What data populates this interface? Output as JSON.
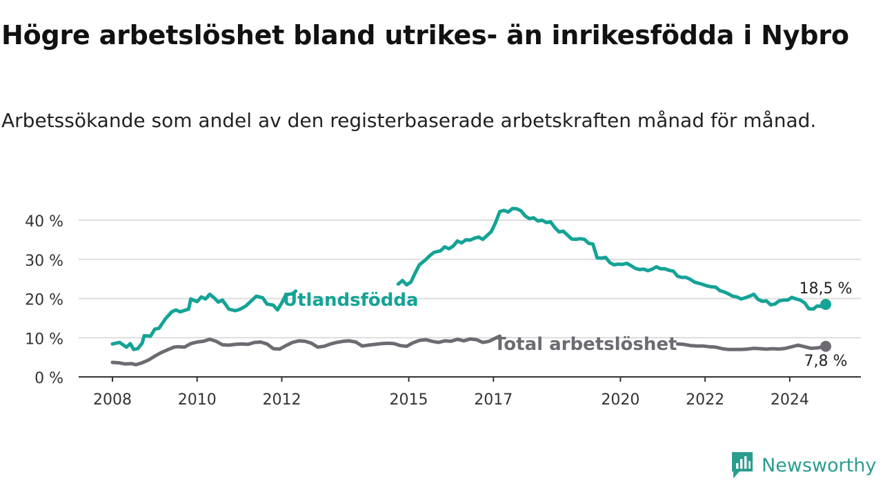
{
  "title": "Högre arbetslöshet bland utrikes- än inrikesfödda i Nybro",
  "subtitle": "Arbetssökande som andel av den registerbaserade arbetskraften månad för månad.",
  "brand": {
    "name": "Newsworthy"
  },
  "colors": {
    "foreign": "#14a396",
    "total": "#6d6a72",
    "grid": "#dddddd",
    "axis": "#333333"
  },
  "chart_data": {
    "type": "line",
    "title": "Högre arbetslöshet bland utrikes- än inrikesfödda i Nybro",
    "subtitle": "Arbetssökande som andel av den registerbaserade arbetskraften månad för månad.",
    "xlabel": "",
    "ylabel": "",
    "xlim": [
      2008,
      2025.2
    ],
    "ylim": [
      0,
      43
    ],
    "x_ticks": [
      {
        "value": 2008,
        "label": "2008"
      },
      {
        "value": 2010,
        "label": "2010"
      },
      {
        "value": 2012,
        "label": "2012"
      },
      {
        "value": 2015,
        "label": "2015"
      },
      {
        "value": 2017,
        "label": "2017"
      },
      {
        "value": 2020,
        "label": "2020"
      },
      {
        "value": 2022,
        "label": "2022"
      },
      {
        "value": 2024,
        "label": "2024"
      }
    ],
    "y_ticks": [
      {
        "value": 0,
        "label": "0 %"
      },
      {
        "value": 10,
        "label": "10 %"
      },
      {
        "value": 20,
        "label": "20 %"
      },
      {
        "value": 30,
        "label": "30 %"
      },
      {
        "value": 40,
        "label": "40 %"
      }
    ],
    "grid": true,
    "legend": "inline labels",
    "series": [
      {
        "name": "Utlandsfödda",
        "color": "#14a396",
        "end_label": "18,5 %",
        "points": [
          [
            2008.0,
            8.4
          ],
          [
            2008.17,
            8.8
          ],
          [
            2008.33,
            7.6
          ],
          [
            2008.42,
            8.5
          ],
          [
            2008.5,
            7.0
          ],
          [
            2008.6,
            7.2
          ],
          [
            2008.7,
            8.6
          ],
          [
            2008.75,
            10.5
          ],
          [
            2008.9,
            10.4
          ],
          [
            2009.0,
            12.2
          ],
          [
            2009.1,
            12.4
          ],
          [
            2009.25,
            14.8
          ],
          [
            2009.4,
            16.6
          ],
          [
            2009.5,
            17.1
          ],
          [
            2009.6,
            16.6
          ],
          [
            2009.8,
            17.3
          ],
          [
            2009.85,
            19.9
          ],
          [
            2010.0,
            19.2
          ],
          [
            2010.1,
            20.4
          ],
          [
            2010.2,
            19.9
          ],
          [
            2010.3,
            21.1
          ],
          [
            2010.4,
            20.2
          ],
          [
            2010.5,
            19.1
          ],
          [
            2010.6,
            19.6
          ],
          [
            2010.75,
            17.3
          ],
          [
            2010.9,
            16.9
          ],
          [
            2011.0,
            17.2
          ],
          [
            2011.15,
            18.1
          ],
          [
            2011.25,
            19.1
          ],
          [
            2011.4,
            20.6
          ],
          [
            2011.55,
            20.2
          ],
          [
            2011.65,
            18.6
          ],
          [
            2011.8,
            18.3
          ],
          [
            2011.9,
            17.1
          ],
          [
            2012.0,
            18.9
          ],
          [
            2012.1,
            21.0
          ],
          [
            2012.25,
            21.2
          ],
          [
            2012.33,
            21.9
          ],
          [
            2014.75,
            23.7
          ],
          [
            2014.85,
            24.6
          ],
          [
            2014.95,
            23.5
          ],
          [
            2015.05,
            24.2
          ],
          [
            2015.15,
            26.5
          ],
          [
            2015.25,
            28.6
          ],
          [
            2015.4,
            29.9
          ],
          [
            2015.5,
            31.0
          ],
          [
            2015.6,
            31.8
          ],
          [
            2015.75,
            32.2
          ],
          [
            2015.85,
            33.2
          ],
          [
            2015.95,
            32.7
          ],
          [
            2016.05,
            33.4
          ],
          [
            2016.15,
            34.7
          ],
          [
            2016.25,
            34.2
          ],
          [
            2016.35,
            35.0
          ],
          [
            2016.45,
            34.9
          ],
          [
            2016.55,
            35.4
          ],
          [
            2016.65,
            35.7
          ],
          [
            2016.75,
            35.1
          ],
          [
            2016.85,
            36.1
          ],
          [
            2016.95,
            37.1
          ],
          [
            2017.05,
            39.4
          ],
          [
            2017.15,
            42.2
          ],
          [
            2017.25,
            42.5
          ],
          [
            2017.35,
            42.1
          ],
          [
            2017.45,
            43.0
          ],
          [
            2017.55,
            42.9
          ],
          [
            2017.65,
            42.4
          ],
          [
            2017.75,
            41.1
          ],
          [
            2017.85,
            40.4
          ],
          [
            2017.95,
            40.6
          ],
          [
            2018.05,
            39.8
          ],
          [
            2018.15,
            40.0
          ],
          [
            2018.25,
            39.4
          ],
          [
            2018.35,
            39.6
          ],
          [
            2018.45,
            38.1
          ],
          [
            2018.55,
            37.0
          ],
          [
            2018.65,
            37.2
          ],
          [
            2018.75,
            36.2
          ],
          [
            2018.85,
            35.2
          ],
          [
            2018.95,
            35.1
          ],
          [
            2019.05,
            35.3
          ],
          [
            2019.15,
            35.1
          ],
          [
            2019.25,
            34.1
          ],
          [
            2019.35,
            33.9
          ],
          [
            2019.45,
            30.4
          ],
          [
            2019.55,
            30.3
          ],
          [
            2019.65,
            30.5
          ],
          [
            2019.75,
            29.2
          ],
          [
            2019.85,
            28.6
          ],
          [
            2019.95,
            28.8
          ],
          [
            2020.05,
            28.7
          ],
          [
            2020.15,
            29.0
          ],
          [
            2020.25,
            28.4
          ],
          [
            2020.35,
            27.7
          ],
          [
            2020.45,
            27.4
          ],
          [
            2020.55,
            27.5
          ],
          [
            2020.65,
            27.1
          ],
          [
            2020.75,
            27.5
          ],
          [
            2020.85,
            28.1
          ],
          [
            2020.95,
            27.6
          ],
          [
            2021.05,
            27.6
          ],
          [
            2021.15,
            27.2
          ],
          [
            2021.25,
            27.0
          ],
          [
            2021.35,
            25.7
          ],
          [
            2021.45,
            25.4
          ],
          [
            2021.55,
            25.4
          ],
          [
            2021.65,
            24.9
          ],
          [
            2021.75,
            24.2
          ],
          [
            2021.85,
            23.9
          ],
          [
            2021.95,
            23.6
          ],
          [
            2022.05,
            23.2
          ],
          [
            2022.15,
            23.0
          ],
          [
            2022.25,
            22.9
          ],
          [
            2022.35,
            22.0
          ],
          [
            2022.45,
            21.7
          ],
          [
            2022.55,
            21.2
          ],
          [
            2022.65,
            20.6
          ],
          [
            2022.75,
            20.4
          ],
          [
            2022.85,
            19.9
          ],
          [
            2022.95,
            20.2
          ],
          [
            2023.05,
            20.6
          ],
          [
            2023.15,
            21.1
          ],
          [
            2023.25,
            19.8
          ],
          [
            2023.35,
            19.3
          ],
          [
            2023.45,
            19.4
          ],
          [
            2023.55,
            18.4
          ],
          [
            2023.65,
            18.6
          ],
          [
            2023.75,
            19.4
          ],
          [
            2023.85,
            19.6
          ],
          [
            2023.95,
            19.6
          ],
          [
            2024.05,
            20.3
          ],
          [
            2024.15,
            19.9
          ],
          [
            2024.25,
            19.6
          ],
          [
            2024.35,
            18.9
          ],
          [
            2024.45,
            17.4
          ],
          [
            2024.55,
            17.3
          ],
          [
            2024.65,
            18.1
          ],
          [
            2024.75,
            18.0
          ],
          [
            2024.85,
            18.5
          ]
        ]
      },
      {
        "name": "Total arbetslöshet",
        "color": "#6d6a72",
        "end_label": "7,8 %",
        "points": [
          [
            2008.0,
            3.7
          ],
          [
            2008.15,
            3.6
          ],
          [
            2008.3,
            3.3
          ],
          [
            2008.45,
            3.4
          ],
          [
            2008.55,
            3.1
          ],
          [
            2008.7,
            3.6
          ],
          [
            2008.85,
            4.3
          ],
          [
            2009.0,
            5.3
          ],
          [
            2009.15,
            6.2
          ],
          [
            2009.3,
            6.9
          ],
          [
            2009.45,
            7.6
          ],
          [
            2009.55,
            7.7
          ],
          [
            2009.7,
            7.6
          ],
          [
            2009.85,
            8.5
          ],
          [
            2010.0,
            8.9
          ],
          [
            2010.15,
            9.1
          ],
          [
            2010.3,
            9.6
          ],
          [
            2010.45,
            9.1
          ],
          [
            2010.6,
            8.2
          ],
          [
            2010.75,
            8.1
          ],
          [
            2010.9,
            8.3
          ],
          [
            2011.05,
            8.4
          ],
          [
            2011.2,
            8.3
          ],
          [
            2011.35,
            8.8
          ],
          [
            2011.5,
            8.9
          ],
          [
            2011.65,
            8.4
          ],
          [
            2011.8,
            7.2
          ],
          [
            2011.95,
            7.1
          ],
          [
            2012.1,
            8.0
          ],
          [
            2012.25,
            8.8
          ],
          [
            2012.4,
            9.2
          ],
          [
            2012.55,
            9.1
          ],
          [
            2012.7,
            8.6
          ],
          [
            2012.85,
            7.6
          ],
          [
            2013.0,
            7.8
          ],
          [
            2013.15,
            8.4
          ],
          [
            2013.3,
            8.8
          ],
          [
            2013.45,
            9.1
          ],
          [
            2013.6,
            9.2
          ],
          [
            2013.75,
            8.9
          ],
          [
            2013.9,
            7.9
          ],
          [
            2014.05,
            8.1
          ],
          [
            2014.2,
            8.3
          ],
          [
            2014.35,
            8.5
          ],
          [
            2014.5,
            8.6
          ],
          [
            2014.65,
            8.5
          ],
          [
            2014.8,
            8.0
          ],
          [
            2014.95,
            7.8
          ],
          [
            2015.1,
            8.7
          ],
          [
            2015.25,
            9.3
          ],
          [
            2015.4,
            9.5
          ],
          [
            2015.55,
            9.1
          ],
          [
            2015.7,
            8.8
          ],
          [
            2015.85,
            9.2
          ],
          [
            2016.0,
            9.1
          ],
          [
            2016.15,
            9.6
          ],
          [
            2016.3,
            9.2
          ],
          [
            2016.45,
            9.7
          ],
          [
            2016.6,
            9.5
          ],
          [
            2016.75,
            8.8
          ],
          [
            2016.9,
            9.1
          ],
          [
            2017.05,
            9.9
          ],
          [
            2017.15,
            10.4
          ],
          [
            2021.35,
            8.4
          ],
          [
            2021.5,
            8.3
          ],
          [
            2021.65,
            8.0
          ],
          [
            2021.8,
            7.9
          ],
          [
            2021.95,
            7.9
          ],
          [
            2022.1,
            7.7
          ],
          [
            2022.25,
            7.6
          ],
          [
            2022.4,
            7.2
          ],
          [
            2022.55,
            7.0
          ],
          [
            2022.7,
            7.0
          ],
          [
            2022.85,
            7.0
          ],
          [
            2023.0,
            7.1
          ],
          [
            2023.15,
            7.3
          ],
          [
            2023.3,
            7.2
          ],
          [
            2023.45,
            7.1
          ],
          [
            2023.6,
            7.2
          ],
          [
            2023.75,
            7.1
          ],
          [
            2023.9,
            7.3
          ],
          [
            2024.05,
            7.7
          ],
          [
            2024.2,
            8.1
          ],
          [
            2024.35,
            7.7
          ],
          [
            2024.5,
            7.3
          ],
          [
            2024.65,
            7.4
          ],
          [
            2024.85,
            7.8
          ]
        ]
      }
    ]
  }
}
